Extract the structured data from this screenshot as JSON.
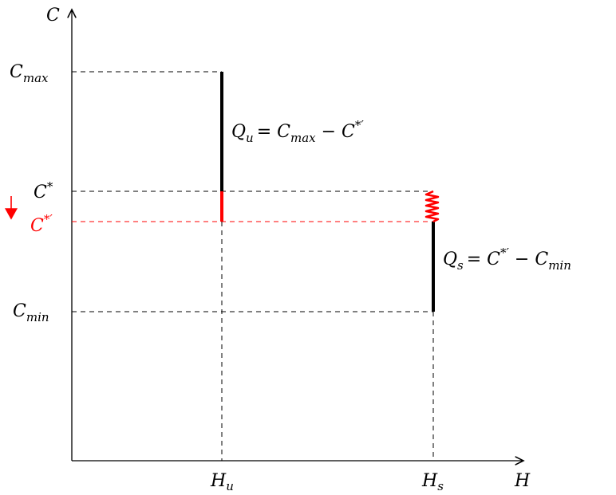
{
  "axes": {
    "y_label": "C",
    "x_label": "H"
  },
  "y_ticks": {
    "c_max": {
      "base": "C",
      "sub": "max"
    },
    "c_star": {
      "base": "C",
      "sup": "*"
    },
    "c_star_prime": {
      "base": "C",
      "sup": "*′"
    },
    "c_min": {
      "base": "C",
      "sub": "min"
    }
  },
  "x_ticks": {
    "h_u": {
      "base": "H",
      "sub": "u"
    },
    "h_s": {
      "base": "H",
      "sub": "s"
    }
  },
  "annotations": {
    "q_u": {
      "base": "Q",
      "sub": "u",
      "rhs": "= C",
      "rhs_sub": "max",
      "tail": " − C",
      "tail_sup": "*′"
    },
    "q_s": {
      "base": "Q",
      "sub": "s",
      "rhs": "= C",
      "rhs_sup": "*′",
      "tail": " − C",
      "tail_sub": "min"
    }
  },
  "colors": {
    "axis": "#000000",
    "highlight": "#ff0000"
  },
  "indicator": "down-arrow"
}
